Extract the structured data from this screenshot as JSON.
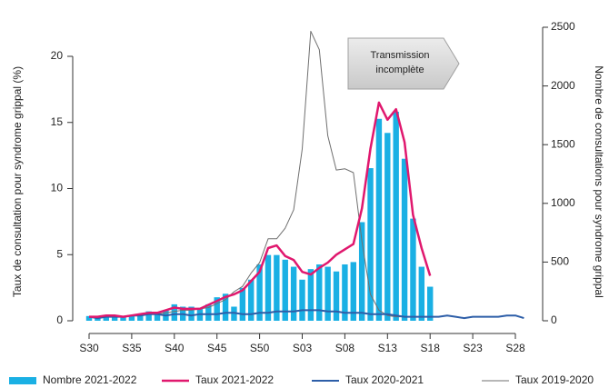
{
  "chart_data": {
    "type": "bar",
    "y_label": "Taux de consultation pour syndrome grippal (%)",
    "y2_label": "Nombre de consultations pour syndrome grippal",
    "annotation": [
      "Transmission",
      "incomplète"
    ],
    "categories": [
      "S30",
      null,
      null,
      null,
      null,
      "S35",
      null,
      null,
      null,
      null,
      "S40",
      null,
      null,
      null,
      null,
      "S45",
      null,
      null,
      null,
      null,
      "S50",
      null,
      null,
      null,
      null,
      "S03",
      null,
      null,
      null,
      null,
      "S08",
      null,
      null,
      null,
      null,
      "S13",
      null,
      null,
      null,
      null,
      "S18",
      null,
      null,
      null,
      null,
      "S23",
      null,
      null,
      null,
      null,
      "S28",
      null
    ],
    "ylim": [
      0,
      22.2
    ],
    "yticks": [
      0,
      5,
      10,
      15,
      20
    ],
    "y2lim": [
      0,
      2500
    ],
    "y2ticks": [
      0,
      500,
      1000,
      1500,
      2000,
      2500
    ],
    "series": [
      {
        "name": "Nombre 2021-2022",
        "type": "bar",
        "axis": "y2",
        "color": "#1ab0e4",
        "values": [
          40,
          40,
          40,
          45,
          40,
          40,
          60,
          80,
          70,
          90,
          140,
          120,
          120,
          110,
          140,
          200,
          230,
          120,
          280,
          350,
          480,
          560,
          560,
          520,
          460,
          350,
          440,
          480,
          460,
          420,
          480,
          500,
          840,
          1300,
          1720,
          1600,
          1780,
          1380,
          870,
          460,
          290,
          null,
          null,
          null,
          null,
          null,
          null,
          null,
          null,
          null,
          null,
          null
        ]
      },
      {
        "name": "Taux 2021-2022",
        "type": "line",
        "color": "#e0186e",
        "width": 2.5,
        "values": [
          0.3,
          0.3,
          0.4,
          0.4,
          0.3,
          0.4,
          0.5,
          0.6,
          0.6,
          0.8,
          1.0,
          0.9,
          0.9,
          0.9,
          1.2,
          1.5,
          1.8,
          2.0,
          2.3,
          3.0,
          3.7,
          5.5,
          5.7,
          4.9,
          4.6,
          3.7,
          3.5,
          4.0,
          4.4,
          5.0,
          5.4,
          5.8,
          8.5,
          13.0,
          16.5,
          15.2,
          16.0,
          13.5,
          8.0,
          5.5,
          3.4,
          null,
          null,
          null,
          null,
          null,
          null,
          null,
          null,
          null,
          null,
          null
        ]
      },
      {
        "name": "Taux 2020-2021",
        "type": "line",
        "color": "#2d5ea8",
        "width": 2,
        "values": [
          0.3,
          0.2,
          0.3,
          0.3,
          0.3,
          0.4,
          0.4,
          0.5,
          0.5,
          0.4,
          0.5,
          0.5,
          0.4,
          0.5,
          0.5,
          0.5,
          0.6,
          0.6,
          0.5,
          0.5,
          0.6,
          0.6,
          0.7,
          0.7,
          0.7,
          0.8,
          0.8,
          0.8,
          0.7,
          0.7,
          0.6,
          0.6,
          0.6,
          0.5,
          0.5,
          0.5,
          0.4,
          0.3,
          0.3,
          0.3,
          0.3,
          0.3,
          0.4,
          0.3,
          0.2,
          0.3,
          0.3,
          0.3,
          0.3,
          0.4,
          0.4,
          0.2
        ]
      },
      {
        "name": "Taux 2019-2020",
        "type": "line",
        "color": "#6f6f6f",
        "width": 1,
        "values": [
          0.3,
          0.3,
          0.3,
          0.3,
          0.3,
          0.4,
          0.4,
          0.5,
          0.5,
          0.6,
          0.7,
          0.8,
          0.8,
          0.9,
          1.0,
          1.3,
          1.6,
          2.2,
          2.6,
          3.6,
          4.4,
          6.2,
          6.2,
          7.0,
          8.4,
          13.0,
          21.9,
          20.5,
          14.0,
          11.4,
          11.5,
          11.2,
          6.0,
          2.0,
          0.8,
          0.4,
          0.3,
          0.3,
          0.3,
          0.3,
          0.3,
          null,
          null,
          null,
          null,
          null,
          null,
          null,
          null,
          null,
          null,
          null
        ]
      }
    ]
  }
}
